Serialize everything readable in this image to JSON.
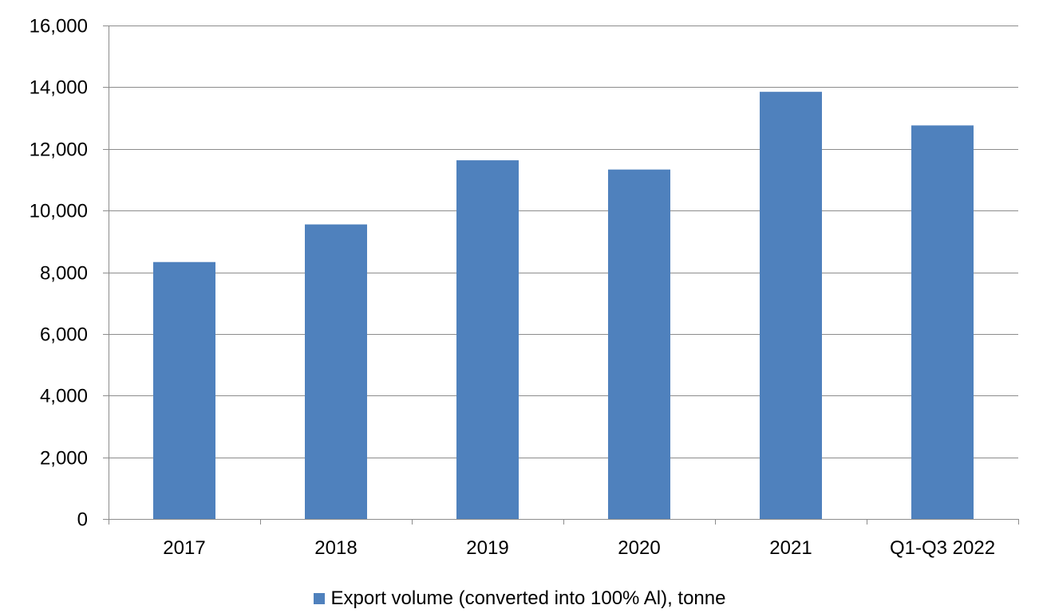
{
  "chart_data": {
    "type": "bar",
    "categories": [
      "2017",
      "2018",
      "2019",
      "2020",
      "2021",
      "Q1-Q3 2022"
    ],
    "series": [
      {
        "name": "Export volume (converted into 100% Al), tonne",
        "values": [
          8330,
          9550,
          11630,
          11330,
          13850,
          12760
        ]
      }
    ],
    "ylim": [
      0,
      16000
    ],
    "yticks": [
      0,
      2000,
      4000,
      6000,
      8000,
      10000,
      12000,
      14000,
      16000
    ],
    "ytick_labels": [
      "0",
      "2,000",
      "4,000",
      "6,000",
      "8,000",
      "10,000",
      "12,000",
      "14,000",
      "16,000"
    ],
    "grid": true,
    "legend_position": "bottom-center",
    "colors": {
      "bar": "#4F81BD",
      "grid": "#8C8C8C",
      "axis": "#8C8C8C"
    }
  }
}
